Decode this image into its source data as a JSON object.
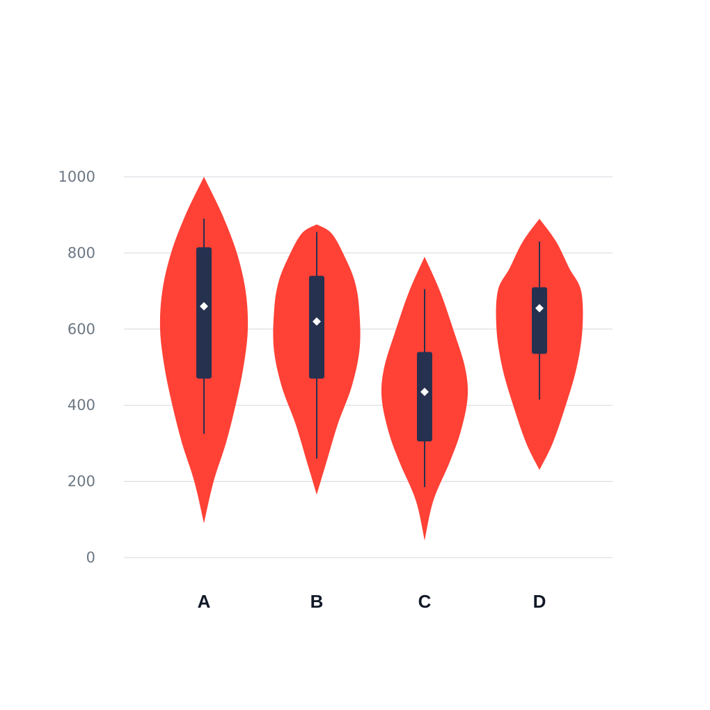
{
  "chart_data": {
    "type": "violin",
    "title": "",
    "xlabel": "",
    "ylabel": "",
    "ylim": [
      0,
      1000
    ],
    "y_ticks": [
      "0",
      "200",
      "400",
      "600",
      "800",
      "1000"
    ],
    "grid": true,
    "colors": {
      "violin": "#ff4136",
      "box": "#26314f",
      "median": "#ffffff",
      "grid": "#d4d7dc"
    },
    "categories": [
      "A",
      "B",
      "C",
      "D"
    ],
    "violins": [
      {
        "category": "A",
        "min": 90,
        "max": 1000,
        "whisker_low": 325,
        "whisker_high": 890,
        "q1": 470,
        "q3": 815,
        "median": 660,
        "density": [
          [
            90,
            0.0
          ],
          [
            200,
            0.22
          ],
          [
            300,
            0.5
          ],
          [
            400,
            0.72
          ],
          [
            500,
            0.9
          ],
          [
            600,
            1.0
          ],
          [
            700,
            0.95
          ],
          [
            800,
            0.75
          ],
          [
            900,
            0.42
          ],
          [
            1000,
            0.0
          ]
        ]
      },
      {
        "category": "B",
        "min": 165,
        "max": 875,
        "whisker_low": 260,
        "whisker_high": 855,
        "q1": 470,
        "q3": 740,
        "median": 620,
        "density": [
          [
            165,
            0.0
          ],
          [
            250,
            0.22
          ],
          [
            350,
            0.48
          ],
          [
            450,
            0.8
          ],
          [
            550,
            0.98
          ],
          [
            650,
            0.97
          ],
          [
            720,
            0.88
          ],
          [
            780,
            0.68
          ],
          [
            850,
            0.35
          ],
          [
            875,
            0.0
          ]
        ]
      },
      {
        "category": "C",
        "min": 45,
        "max": 790,
        "whisker_low": 185,
        "whisker_high": 705,
        "q1": 305,
        "q3": 540,
        "median": 435,
        "density": [
          [
            45,
            0.0
          ],
          [
            150,
            0.2
          ],
          [
            250,
            0.57
          ],
          [
            330,
            0.82
          ],
          [
            420,
            0.98
          ],
          [
            500,
            0.92
          ],
          [
            600,
            0.65
          ],
          [
            700,
            0.35
          ],
          [
            790,
            0.0
          ]
        ]
      },
      {
        "category": "D",
        "min": 230,
        "max": 890,
        "whisker_low": 415,
        "whisker_high": 830,
        "q1": 535,
        "q3": 710,
        "median": 655,
        "density": [
          [
            230,
            0.0
          ],
          [
            300,
            0.3
          ],
          [
            400,
            0.6
          ],
          [
            500,
            0.85
          ],
          [
            600,
            0.98
          ],
          [
            700,
            0.95
          ],
          [
            760,
            0.68
          ],
          [
            830,
            0.38
          ],
          [
            890,
            0.0
          ]
        ]
      }
    ]
  }
}
